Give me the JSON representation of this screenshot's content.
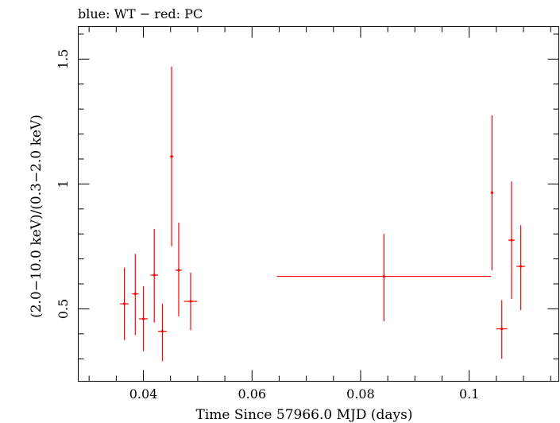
{
  "chart_data": {
    "type": "scatter",
    "title": "blue: WT − red: PC",
    "xlabel": "Time Since 57966.0 MJD (days)",
    "ylabel": "(2.0−10.0 keV)/(0.3−2.0 keV)",
    "xlim": [
      0.028,
      0.1165
    ],
    "ylim": [
      0.21,
      1.63
    ],
    "x_ticks": [
      0.04,
      0.06,
      0.08,
      0.1
    ],
    "x_tick_labels": [
      "0.04",
      "0.06",
      "0.08",
      "0.1"
    ],
    "y_ticks": [
      0.5,
      1.0,
      1.5
    ],
    "y_tick_labels": [
      "0.5",
      "1",
      "1.5"
    ],
    "grid": false,
    "colors": {
      "pc_series": "#ff0000",
      "axes": "#000000"
    },
    "series": [
      {
        "x": [
          0.0365,
          0.0385,
          0.04,
          0.042,
          0.0435,
          0.0452,
          0.0465,
          0.0487,
          0.0843,
          0.1042,
          0.106,
          0.1078,
          0.1095
        ],
        "xerr": [
          0.0008,
          0.0006,
          0.0008,
          0.0007,
          0.0008,
          0.0003,
          0.0006,
          0.0012,
          0.0197,
          0.0001,
          0.001,
          0.0006,
          0.0008
        ],
        "y": [
          0.52,
          0.56,
          0.46,
          0.635,
          0.41,
          1.11,
          0.655,
          0.53,
          0.63,
          0.965,
          0.42,
          0.775,
          0.67
        ],
        "yerr_low": [
          0.145,
          0.165,
          0.13,
          0.19,
          0.12,
          0.36,
          0.185,
          0.115,
          0.18,
          0.31,
          0.12,
          0.235,
          0.175
        ],
        "yerr_high": [
          0.145,
          0.16,
          0.13,
          0.185,
          0.11,
          0.36,
          0.19,
          0.115,
          0.17,
          0.31,
          0.115,
          0.235,
          0.165
        ]
      }
    ]
  }
}
